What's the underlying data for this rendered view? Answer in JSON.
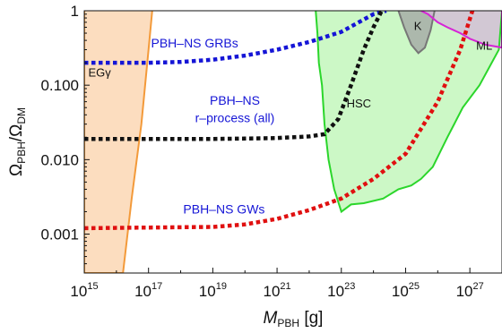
{
  "chart_data": {
    "type": "line",
    "xlabel": {
      "main": "M",
      "sub": "PBH",
      "unit": " [g]"
    },
    "ylabel": {
      "main": "Ω",
      "sub1": "PBH",
      "slash": "/Ω",
      "sub2": "DM"
    },
    "x_scale": "log",
    "y_scale": "log",
    "xlim": [
      1000000000000000.0,
      1e+28
    ],
    "ylim": [
      0.0003,
      1
    ],
    "x_ticks": [
      {
        "value": 1000000000000000.0,
        "base": "10",
        "exp": "15"
      },
      {
        "value": 1e+17,
        "base": "10",
        "exp": "17"
      },
      {
        "value": 1e+19,
        "base": "10",
        "exp": "19"
      },
      {
        "value": 1e+21,
        "base": "10",
        "exp": "21"
      },
      {
        "value": 1e+23,
        "base": "10",
        "exp": "23"
      },
      {
        "value": 1e+25,
        "base": "10",
        "exp": "25"
      },
      {
        "value": 1e+27,
        "base": "10",
        "exp": "27"
      }
    ],
    "y_ticks": [
      {
        "value": 0.001,
        "label": "0.001"
      },
      {
        "value": 0.01,
        "label": "0.010"
      },
      {
        "value": 0.1,
        "label": "0.100"
      },
      {
        "value": 1,
        "label": "1"
      }
    ],
    "grid": false,
    "series": [
      {
        "name": "PBH–NS GRBs",
        "style": "dotted",
        "color": "#1515d6",
        "points": [
          [
            1000000000000000.0,
            0.2
          ],
          [
            1e+17,
            0.2
          ],
          [
            1e+18,
            0.205
          ],
          [
            1e+19,
            0.22
          ],
          [
            1e+20,
            0.25
          ],
          [
            1e+21,
            0.3
          ],
          [
            1e+22,
            0.38
          ],
          [
            1e+23,
            0.52
          ],
          [
            1e+24,
            0.9
          ],
          [
            2.5e+24,
            1
          ]
        ]
      },
      {
        "name": "PBH–NS r-process (all)",
        "style": "dotted",
        "color": "#111111",
        "points": [
          [
            1000000000000000.0,
            0.019
          ],
          [
            1e+19,
            0.019
          ],
          [
            1e+20,
            0.0192
          ],
          [
            1e+21,
            0.0195
          ],
          [
            1e+22,
            0.0205
          ],
          [
            3e+22,
            0.022
          ],
          [
            8e+22,
            0.035
          ],
          [
            2e+23,
            0.1
          ],
          [
            5e+23,
            0.3
          ],
          [
            1e+24,
            0.6
          ],
          [
            1.8e+24,
            1
          ]
        ]
      },
      {
        "name": "PBH–NS GWs",
        "style": "dotted",
        "color": "#e01010",
        "points": [
          [
            1000000000000000.0,
            0.0012
          ],
          [
            1e+19,
            0.00125
          ],
          [
            1e+20,
            0.00135
          ],
          [
            1e+21,
            0.0016
          ],
          [
            1e+22,
            0.0021
          ],
          [
            1e+23,
            0.003
          ],
          [
            1e+24,
            0.0055
          ],
          [
            1e+25,
            0.012
          ],
          [
            1e+26,
            0.06
          ],
          [
            5e+26,
            0.3
          ],
          [
            1.2e+27,
            1
          ]
        ]
      }
    ],
    "regions": [
      {
        "name": "EGγ",
        "fill": "#fcd9b8",
        "edge": "#f39a3a",
        "boundary": [
          [
            1000000000000000.0,
            1
          ],
          [
            1000000000000000.0,
            0.0003
          ],
          [
            1.6e+16,
            0.0003
          ],
          [
            3e+16,
            0.003
          ],
          [
            6e+16,
            0.03
          ],
          [
            1e+17,
            0.3
          ],
          [
            1.3e+17,
            1
          ]
        ]
      },
      {
        "name": "HSC",
        "fill": "#c6f7c0",
        "edge": "#2bd62b",
        "boundary": [
          [
            1.6e+22,
            1
          ],
          [
            1.8e+22,
            0.5
          ],
          [
            2e+22,
            0.2
          ],
          [
            2.5e+22,
            0.1
          ],
          [
            3e+22,
            0.03
          ],
          [
            4e+22,
            0.01
          ],
          [
            6e+22,
            0.004
          ],
          [
            1e+23,
            0.002
          ],
          [
            2e+23,
            0.0025
          ],
          [
            5e+23,
            0.0026
          ],
          [
            2e+24,
            0.003
          ],
          [
            6e+24,
            0.004
          ],
          [
            1.5e+25,
            0.0045
          ],
          [
            3e+25,
            0.0055
          ],
          [
            7e+25,
            0.008
          ],
          [
            2e+26,
            0.02
          ],
          [
            6e+26,
            0.05
          ],
          [
            2e+27,
            0.1
          ],
          [
            8e+27,
            0.3
          ],
          [
            1e+28,
            1
          ]
        ]
      },
      {
        "name": "K",
        "fill": "#a8b0a8",
        "edge": "#777777",
        "boundary": [
          [
            6e+24,
            1
          ],
          [
            9e+24,
            0.6
          ],
          [
            1.5e+25,
            0.35
          ],
          [
            2.5e+25,
            0.27
          ],
          [
            4e+25,
            0.32
          ],
          [
            6e+25,
            0.55
          ],
          [
            8e+25,
            1
          ]
        ]
      },
      {
        "name": "ML",
        "fill": "#d4b8d8",
        "edge": "#d624d6",
        "boundary": [
          [
            3e+25,
            1
          ],
          [
            5e+25,
            0.9
          ],
          [
            1e+26,
            0.7
          ],
          [
            2e+26,
            0.6
          ],
          [
            5e+26,
            0.5
          ],
          [
            1e+27,
            0.42
          ],
          [
            3e+27,
            0.35
          ],
          [
            1e+28,
            0.32
          ],
          [
            1e+28,
            1
          ]
        ]
      }
    ],
    "labels": [
      {
        "text": "EGγ",
        "x": 3000000000000000.0,
        "y": 0.13,
        "color": "#111111"
      },
      {
        "text": "PBH–NS GRBs",
        "x": 1.2e+17,
        "y": 0.32,
        "color": "#1515d6"
      },
      {
        "text": "PBH–NS",
        "x": 1.1e+18,
        "y": 0.055,
        "color": "#1515d6"
      },
      {
        "text": "r–process (all)",
        "x": 1.1e+18,
        "y": 0.032,
        "color": "#1515d6"
      },
      {
        "text": "HSC",
        "x": 3.5e+23,
        "y": 0.05,
        "color": "#111111"
      },
      {
        "text": "K",
        "x": 2.4e+25,
        "y": 0.55,
        "color": "#111111"
      },
      {
        "text": "ML",
        "x": 2.8e+27,
        "y": 0.3,
        "color": "#111111"
      },
      {
        "text": "PBH–NS GWs",
        "x": 1.2e+18,
        "y": 0.0019,
        "color": "#1515d6"
      }
    ]
  }
}
